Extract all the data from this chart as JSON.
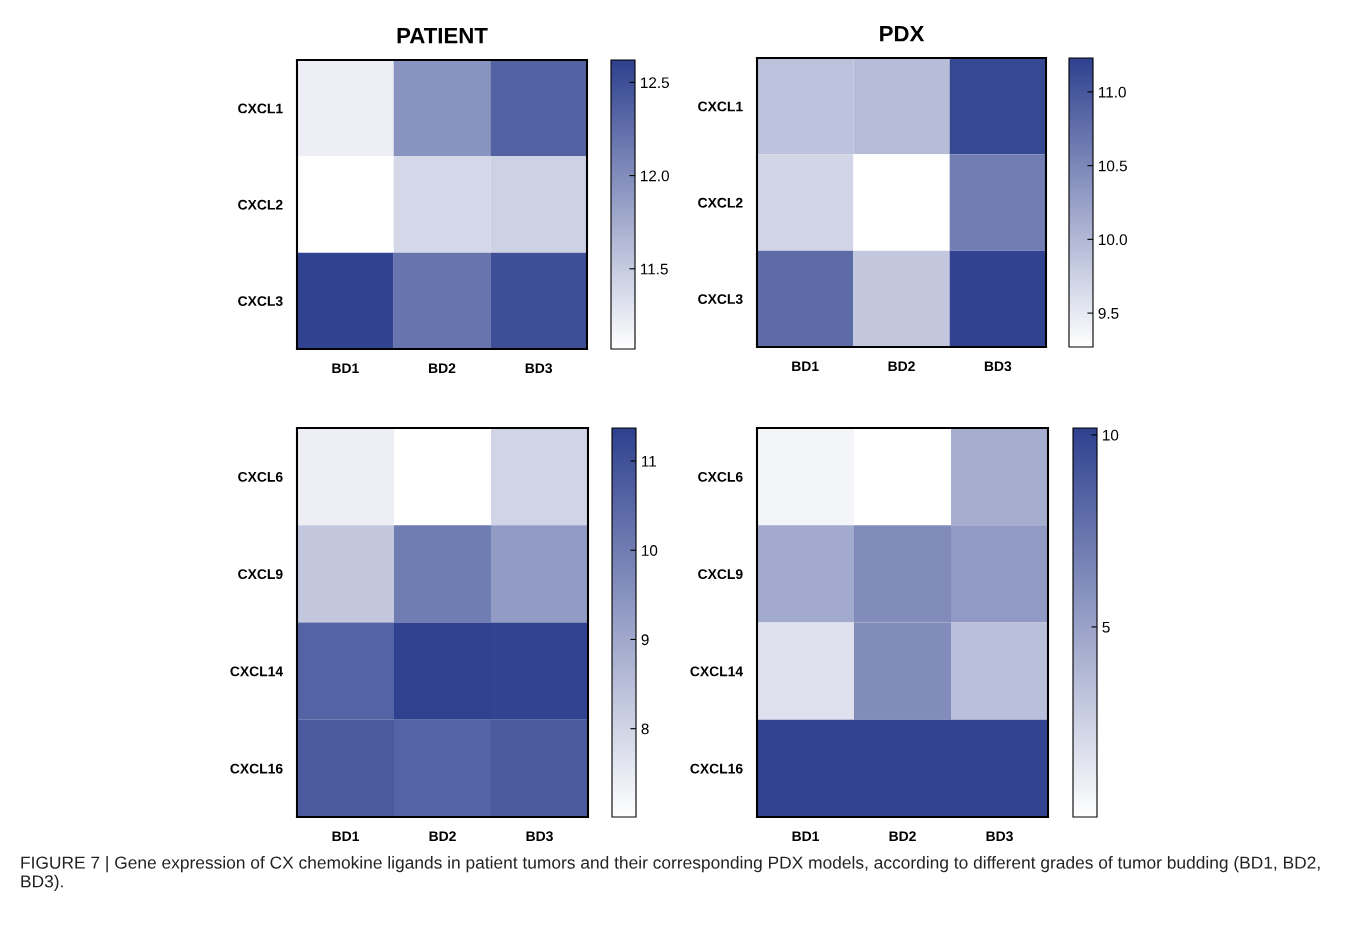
{
  "chart_data": [
    {
      "type": "heatmap",
      "title": "PATIENT",
      "categories": [
        "BD1",
        "BD2",
        "BD3"
      ],
      "y_categories": [
        "CXCL1",
        "CXCL2",
        "CXCL3"
      ],
      "cells": [
        [
          11.2,
          11.95,
          12.35
        ],
        [
          11.07,
          11.4,
          11.45
        ],
        [
          12.6,
          12.2,
          12.5
        ]
      ],
      "clim": [
        11.07,
        12.62
      ],
      "cticks": [
        11.5,
        {
          "value": 12,
          "label": "12.0"
        },
        12.5
      ],
      "colors": [
        "#ffffff",
        "#2f418f"
      ]
    },
    {
      "type": "heatmap",
      "title": "PDX",
      "categories": [
        "BD1",
        "BD2",
        "BD3"
      ],
      "y_categories": [
        "CXCL1",
        "CXCL2",
        "CXCL3"
      ],
      "cells": [
        [
          9.9,
          9.95,
          11.15
        ],
        [
          9.7,
          9.27,
          10.6
        ],
        [
          10.8,
          9.85,
          11.2
        ]
      ],
      "clim": [
        9.27,
        11.23
      ],
      "cticks": [
        9.5,
        {
          "value": 10,
          "label": "10.0"
        },
        10.5,
        {
          "value": 11,
          "label": "11.0"
        }
      ],
      "colors": [
        "#ffffff",
        "#2f418f"
      ]
    },
    {
      "type": "heatmap",
      "categories": [
        "BD1",
        "BD2",
        "BD3"
      ],
      "y_categories": [
        "CXCL6",
        "CXCL9",
        "CXCL14",
        "CXCL16"
      ],
      "cells": [
        [
          7.4,
          7.01,
          8.0
        ],
        [
          8.3,
          10.0,
          9.3
        ],
        [
          10.6,
          11.35,
          11.3
        ],
        [
          10.8,
          10.6,
          10.8
        ]
      ],
      "clim": [
        7.01,
        11.37
      ],
      "cticks": [
        8,
        9,
        10,
        11
      ],
      "colors": [
        "#ffffff",
        "#2f418f"
      ]
    },
    {
      "type": "heatmap",
      "categories": [
        "BD1",
        "BD2",
        "BD3"
      ],
      "y_categories": [
        "CXCL6",
        "CXCL9",
        "CXCL14",
        "CXCL16"
      ],
      "cells": [
        [
          0.6,
          0.05,
          4.4
        ],
        [
          4.6,
          6.2,
          5.4
        ],
        [
          1.6,
          6.2,
          3.4
        ],
        [
          10.0,
          10.0,
          10.0
        ]
      ],
      "clim": [
        0.05,
        10.18
      ],
      "cticks": [
        5,
        10
      ],
      "colors": [
        "#ffffff",
        "#2f418f"
      ],
      "annotations": [
        "FIGURE 7 | Gene expression of CX chemokine ligands in patient tumors and their corresponding PDX models, according to different grades of tumor budding (BD1, BD2, BD3)."
      ]
    }
  ]
}
